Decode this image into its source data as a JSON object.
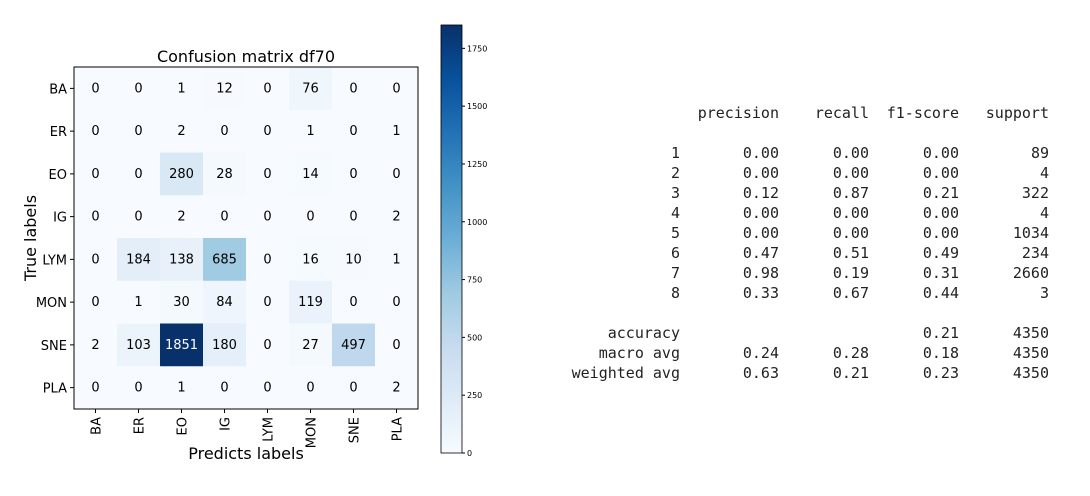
{
  "chart_data": [
    {
      "type": "heatmap",
      "title": "Confusion matrix df70",
      "xlabel": "Predicts labels",
      "ylabel": "True labels",
      "x_labels": [
        "BA",
        "ER",
        "EO",
        "IG",
        "LYM",
        "MON",
        "SNE",
        "PLA"
      ],
      "y_labels": [
        "BA",
        "ER",
        "EO",
        "IG",
        "LYM",
        "MON",
        "SNE",
        "PLA"
      ],
      "matrix": [
        [
          0,
          0,
          1,
          12,
          0,
          76,
          0,
          0
        ],
        [
          0,
          0,
          2,
          0,
          0,
          1,
          0,
          1
        ],
        [
          0,
          0,
          280,
          28,
          0,
          14,
          0,
          0
        ],
        [
          0,
          0,
          2,
          0,
          0,
          0,
          0,
          2
        ],
        [
          0,
          184,
          138,
          685,
          0,
          16,
          10,
          1
        ],
        [
          0,
          1,
          30,
          84,
          0,
          119,
          0,
          0
        ],
        [
          2,
          103,
          1851,
          180,
          0,
          27,
          497,
          0
        ],
        [
          0,
          0,
          1,
          0,
          0,
          0,
          0,
          2
        ]
      ],
      "colormap": "Blues",
      "colorbar": {
        "min": 0,
        "max": 1851,
        "ticks": [
          0,
          250,
          500,
          750,
          1000,
          1250,
          1500,
          1750
        ]
      }
    },
    {
      "type": "table",
      "columns": [
        "",
        "precision",
        "recall",
        "f1-score",
        "support"
      ],
      "rows": [
        [
          "1",
          "0.00",
          "0.00",
          "0.00",
          "89"
        ],
        [
          "2",
          "0.00",
          "0.00",
          "0.00",
          "4"
        ],
        [
          "3",
          "0.12",
          "0.87",
          "0.21",
          "322"
        ],
        [
          "4",
          "0.00",
          "0.00",
          "0.00",
          "4"
        ],
        [
          "5",
          "0.00",
          "0.00",
          "0.00",
          "1034"
        ],
        [
          "6",
          "0.47",
          "0.51",
          "0.49",
          "234"
        ],
        [
          "7",
          "0.98",
          "0.19",
          "0.31",
          "2660"
        ],
        [
          "8",
          "0.33",
          "0.67",
          "0.44",
          "3"
        ]
      ],
      "summary": [
        [
          "accuracy",
          "",
          "",
          "0.21",
          "4350"
        ],
        [
          "macro avg",
          "0.24",
          "0.28",
          "0.18",
          "4350"
        ],
        [
          "weighted avg",
          "0.63",
          "0.21",
          "0.23",
          "4350"
        ]
      ]
    }
  ]
}
